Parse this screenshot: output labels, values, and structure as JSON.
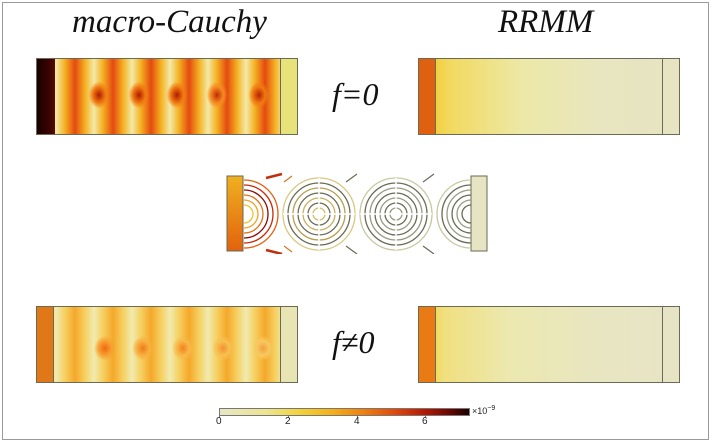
{
  "titles": {
    "left": "macro-Cauchy",
    "right": "RRMM"
  },
  "rows": [
    {
      "label": "f=0"
    },
    {
      "label": "f≠0"
    }
  ],
  "colorbar": {
    "ticks": [
      "0",
      "2",
      "4",
      "6"
    ],
    "unit_base": "×10",
    "unit_exponent": "−9",
    "min": 0,
    "max": 7.2,
    "colormap": [
      "#e8e6c4",
      "#f3d23a",
      "#ee7e10",
      "#b41a06",
      "#1a0000"
    ]
  }
}
